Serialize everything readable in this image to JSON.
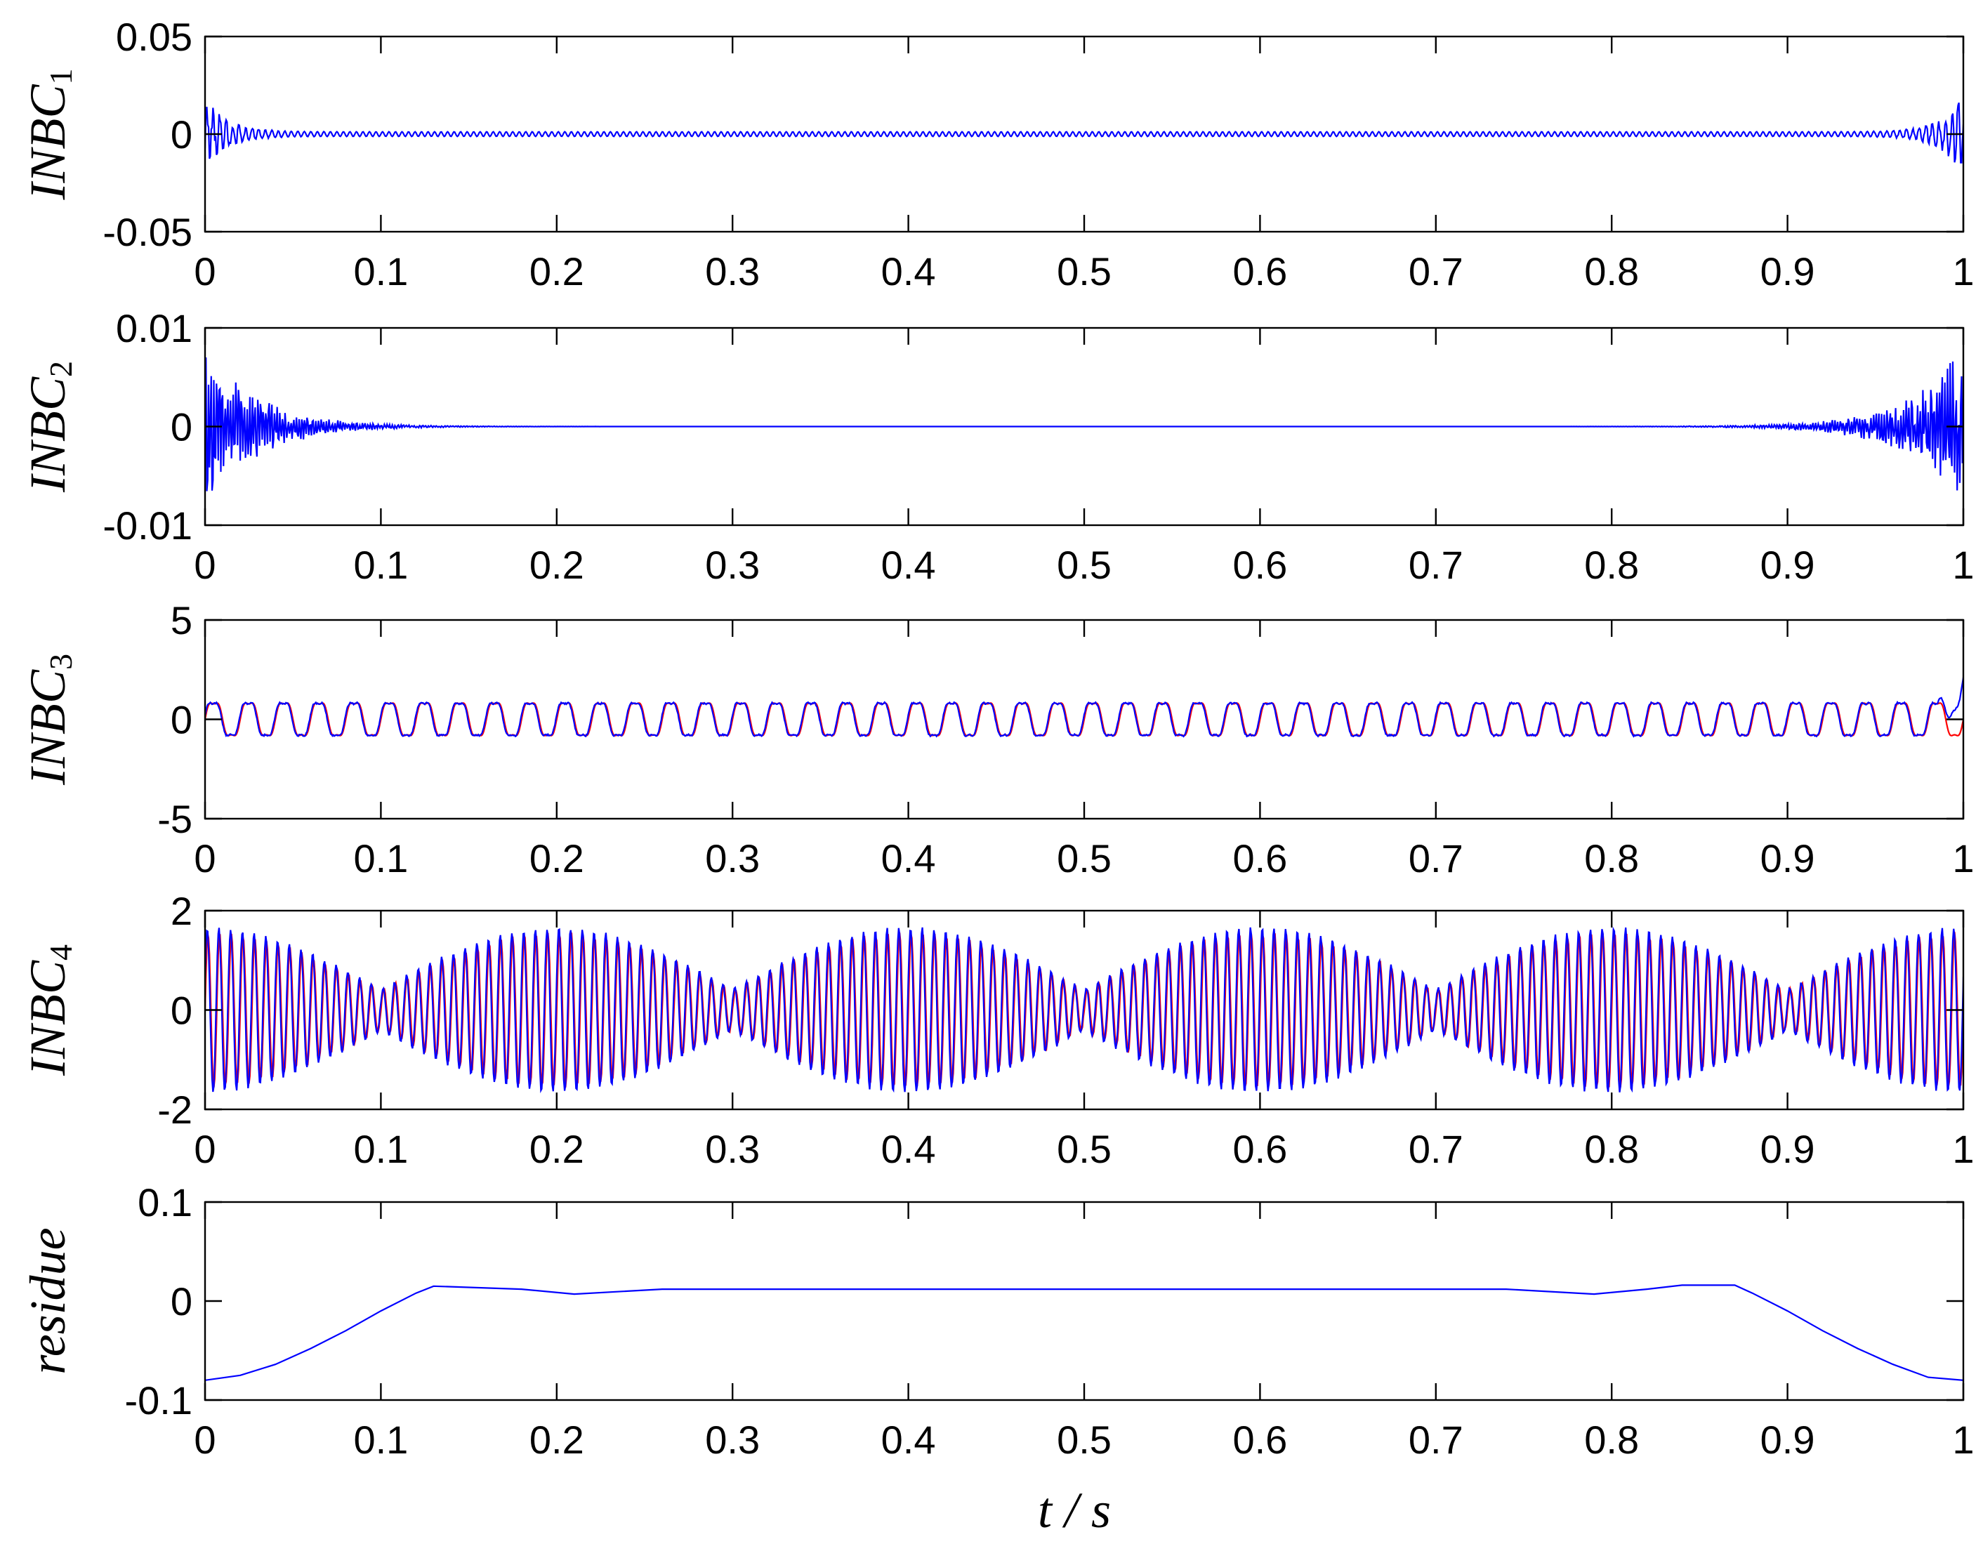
{
  "chart_data": {
    "type": "line",
    "xlabel": "t / s",
    "xlim": [
      0,
      1
    ],
    "x_ticks": [
      "0",
      "0.1",
      "0.2",
      "0.3",
      "0.4",
      "0.5",
      "0.6",
      "0.7",
      "0.8",
      "0.9",
      "1"
    ],
    "colors": {
      "blue": "#0000ff",
      "red": "#ff0000",
      "axis": "#000000"
    },
    "grid": false,
    "panels": [
      {
        "ylabel": "INBC",
        "ylabel_sub": "1",
        "ylim": [
          -0.05,
          0.05
        ],
        "y_ticks": [
          "0.05",
          "0",
          "-0.05"
        ],
        "y_tick_values": [
          0.05,
          0,
          -0.05
        ],
        "series": [
          {
            "color": "blue",
            "kind": "decay_noise",
            "amp": 0.021,
            "steady_amp": 0.0012,
            "freq": 270,
            "decay": 0.012
          }
        ]
      },
      {
        "ylabel": "INBC",
        "ylabel_sub": "2",
        "ylim": [
          -0.01,
          0.01
        ],
        "y_ticks": [
          "0.01",
          "0",
          "-0.01"
        ],
        "y_tick_values": [
          0.01,
          0,
          -0.01
        ],
        "series": [
          {
            "color": "blue",
            "kind": "decay_noise",
            "amp": 0.0085,
            "steady_amp": 0.0,
            "freq": 640,
            "decay": 0.03
          }
        ]
      },
      {
        "ylabel": "INBC",
        "ylabel_sub": "3",
        "ylim": [
          -5,
          5
        ],
        "y_ticks": [
          "5",
          "0",
          "-5"
        ],
        "y_tick_values": [
          5,
          0,
          -5
        ],
        "series": [
          {
            "color": "red",
            "kind": "sine",
            "amp": 0.95,
            "freq": 50,
            "phase": 0.0
          },
          {
            "color": "blue",
            "kind": "sine",
            "amp": 0.95,
            "freq": 50,
            "phase": 0.15,
            "end_spike": 1.9
          }
        ]
      },
      {
        "ylabel": "INBC",
        "ylabel_sub": "4",
        "ylim": [
          -2,
          2
        ],
        "y_ticks": [
          "2",
          "0",
          "-2"
        ],
        "y_tick_values": [
          2,
          0,
          -2
        ],
        "series": [
          {
            "color": "red",
            "kind": "beat",
            "amp": 1.55,
            "carrier": 150,
            "envelope": 5,
            "phase": 0.0
          },
          {
            "color": "blue",
            "kind": "beat",
            "amp": 1.65,
            "carrier": 150,
            "envelope": 5,
            "phase": 0.4
          }
        ]
      },
      {
        "ylabel": "residue",
        "ylabel_sub": "",
        "ylim": [
          -0.1,
          0.1
        ],
        "y_ticks": [
          "0.1",
          "0",
          "-0.1"
        ],
        "y_tick_values": [
          0.1,
          0,
          -0.1
        ],
        "series": [
          {
            "color": "blue",
            "kind": "points",
            "x": [
              0,
              0.02,
              0.04,
              0.06,
              0.08,
              0.1,
              0.12,
              0.13,
              0.18,
              0.21,
              0.26,
              0.74,
              0.79,
              0.82,
              0.84,
              0.87,
              0.88,
              0.9,
              0.92,
              0.94,
              0.96,
              0.98,
              1.0
            ],
            "y": [
              -0.08,
              -0.075,
              -0.064,
              -0.048,
              -0.03,
              -0.01,
              0.008,
              0.015,
              0.012,
              0.007,
              0.012,
              0.012,
              0.007,
              0.012,
              0.016,
              0.016,
              0.008,
              -0.01,
              -0.03,
              -0.048,
              -0.064,
              -0.077,
              -0.08
            ]
          }
        ]
      }
    ]
  }
}
